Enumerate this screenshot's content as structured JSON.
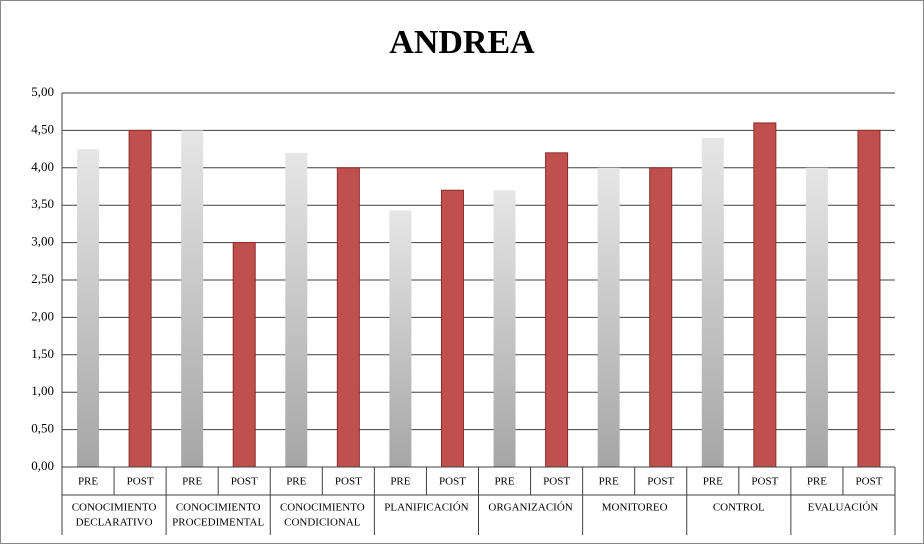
{
  "chart_data": {
    "type": "bar",
    "title": "ANDREA",
    "categories": [
      "PRE",
      "POST",
      "PRE",
      "POST",
      "PRE",
      "POST",
      "PRE",
      "POST",
      "PRE",
      "POST",
      "PRE",
      "POST",
      "PRE",
      "POST",
      "PRE",
      "POST"
    ],
    "groups": [
      [
        "CONOCIMIENTO",
        "DECLARATIVO"
      ],
      [
        "CONOCIMIENTO",
        "PROCEDIMENTAL"
      ],
      [
        "CONOCIMIENTO",
        "CONDICIONAL"
      ],
      [
        "PLANIFICACIÓN"
      ],
      [
        "ORGANIZACIÓN"
      ],
      [
        "MONITOREO"
      ],
      [
        "CONTROL"
      ],
      [
        "EVALUACIÓN"
      ]
    ],
    "values": [
      4.25,
      4.5,
      4.5,
      3.0,
      4.2,
      4.0,
      3.43,
      3.7,
      3.7,
      4.2,
      4.0,
      4.0,
      4.4,
      4.6,
      4.0,
      4.5
    ],
    "colors": [
      "#a6a6a6",
      "#c0504d"
    ],
    "ylim": [
      0,
      5
    ],
    "yticks": [
      {
        "value": 0,
        "label": "0,00"
      },
      {
        "value": 0.5,
        "label": "0,50"
      },
      {
        "value": 1,
        "label": "1,00"
      },
      {
        "value": 1.5,
        "label": "1,50"
      },
      {
        "value": 2,
        "label": "2,00"
      },
      {
        "value": 2.5,
        "label": "2,50"
      },
      {
        "value": 3,
        "label": "3,00"
      },
      {
        "value": 3.5,
        "label": "3,50"
      },
      {
        "value": 4,
        "label": "4,00"
      },
      {
        "value": 4.5,
        "label": "4,50"
      },
      {
        "value": 5,
        "label": "5,00"
      }
    ],
    "grid": true
  }
}
